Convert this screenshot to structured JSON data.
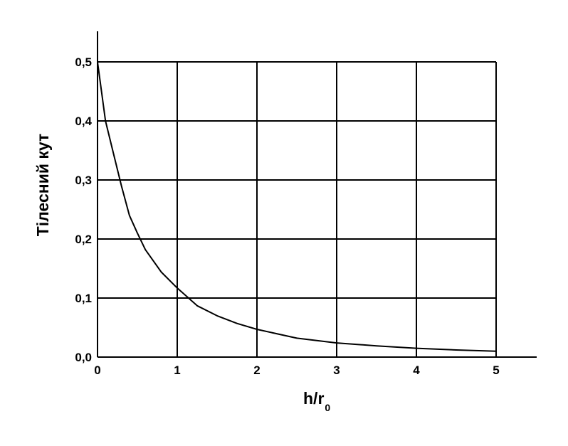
{
  "chart_data": {
    "type": "line",
    "xlabel": "h/r",
    "xlabel_subscript": "0",
    "ylabel": "Тілесний кут",
    "xlim": [
      0,
      5
    ],
    "ylim": [
      0,
      0.5
    ],
    "x_ticks": [
      0,
      1,
      2,
      3,
      4,
      5
    ],
    "y_ticks": [
      0.0,
      0.1,
      0.2,
      0.3,
      0.4,
      0.5
    ],
    "x_tick_labels": [
      "0",
      "1",
      "2",
      "3",
      "4",
      "5"
    ],
    "y_tick_labels": [
      "0,0",
      "0,1",
      "0,2",
      "0,3",
      "0,4",
      "0,5"
    ],
    "grid": true,
    "series": [
      {
        "x": [
          0,
          0.1,
          0.2,
          0.3,
          0.4,
          0.5,
          0.6,
          0.8,
          1.0,
          1.25,
          1.5,
          1.75,
          2.0,
          2.5,
          3.0,
          3.5,
          4.0,
          4.5,
          5.0
        ],
        "y": [
          0.5,
          0.4,
          0.345,
          0.29,
          0.24,
          0.21,
          0.182,
          0.144,
          0.117,
          0.087,
          0.07,
          0.057,
          0.047,
          0.032,
          0.024,
          0.019,
          0.015,
          0.012,
          0.01
        ]
      }
    ]
  }
}
